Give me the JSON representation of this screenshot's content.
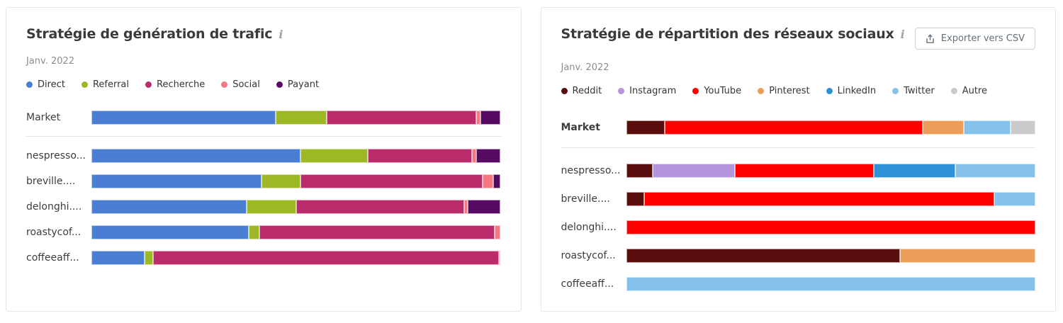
{
  "ui": {
    "info_icon_glyph": "i"
  },
  "chart_data": [
    {
      "type": "bar",
      "stacked": true,
      "orientation": "horizontal",
      "title": "Stratégie de génération de trafic",
      "subtitle": "Janv. 2022",
      "unit": "percent",
      "xlim": [
        0,
        100
      ],
      "grid": false,
      "legend_position": "top",
      "categories": [
        "Market",
        "nespresso...",
        "breville....",
        "delonghi....",
        "roastycof...",
        "coffeeaff..."
      ],
      "series": [
        {
          "name": "Direct",
          "color": "#4a7ed2",
          "values": [
            45,
            51,
            41.5,
            38,
            38.5,
            13
          ]
        },
        {
          "name": "Referral",
          "color": "#9cb824",
          "values": [
            12.5,
            16.5,
            9.5,
            12,
            2.5,
            2
          ]
        },
        {
          "name": "Recherche",
          "color": "#bb2c6d",
          "values": [
            36.5,
            25.5,
            44.5,
            41,
            57.5,
            84.5
          ]
        },
        {
          "name": "Social",
          "color": "#f4787f",
          "values": [
            1,
            1,
            2.7,
            1,
            1.5,
            0.5
          ]
        },
        {
          "name": "Payant",
          "color": "#570a62",
          "values": [
            5,
            6,
            1.8,
            8,
            0,
            0
          ]
        }
      ]
    },
    {
      "type": "bar",
      "stacked": true,
      "orientation": "horizontal",
      "title": "Stratégie de répartition des réseaux sociaux",
      "subtitle": "Janv. 2022",
      "unit": "percent",
      "xlim": [
        0,
        100
      ],
      "grid": false,
      "legend_position": "top",
      "export_button_label": "Exporter vers CSV",
      "categories": [
        "Market",
        "nespresso...",
        "breville....",
        "delonghi....",
        "roastycof...",
        "coffeeaff..."
      ],
      "series": [
        {
          "name": "Reddit",
          "color": "#5a0d0d",
          "values": [
            9.5,
            6.5,
            4.5,
            0,
            67,
            0
          ]
        },
        {
          "name": "Instagram",
          "color": "#b295dd",
          "values": [
            0,
            20,
            0,
            0,
            0,
            0
          ]
        },
        {
          "name": "YouTube",
          "color": "#fe0000",
          "values": [
            63,
            34,
            85.5,
            100,
            0,
            0
          ]
        },
        {
          "name": "Pinterest",
          "color": "#ec9e58",
          "values": [
            10,
            0,
            0,
            0,
            33,
            0
          ]
        },
        {
          "name": "LinkedIn",
          "color": "#2e90d6",
          "values": [
            0,
            20,
            0,
            0,
            0,
            0
          ]
        },
        {
          "name": "Twitter",
          "color": "#85c2eb",
          "values": [
            11.5,
            19.5,
            10,
            0,
            0,
            100
          ]
        },
        {
          "name": "Autre",
          "color": "#cacaca",
          "values": [
            6,
            0,
            0,
            0,
            0,
            0
          ]
        }
      ]
    }
  ]
}
